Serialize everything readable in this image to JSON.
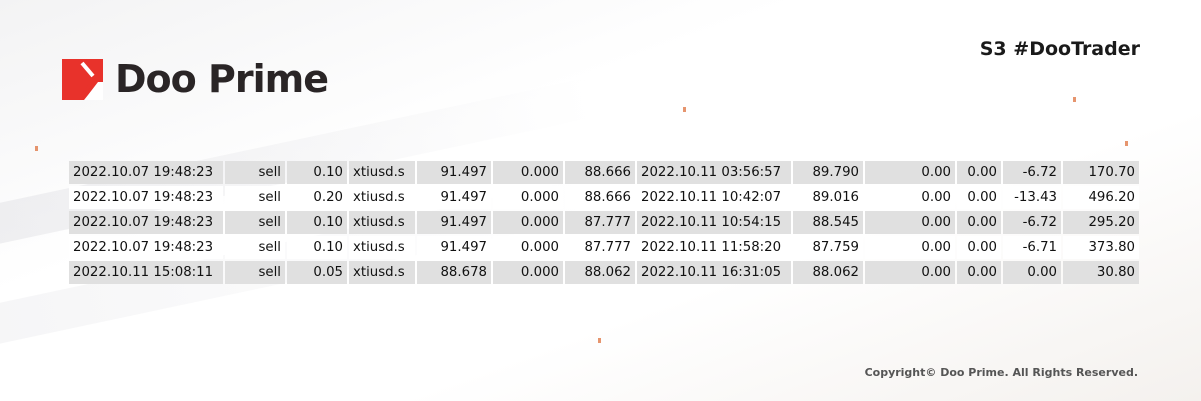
{
  "brand": {
    "logo_text": "Doo Prime",
    "accent": "#e8322b"
  },
  "tagline": "S3 #DooTrader",
  "copyright": "Copyright© Doo Prime. All Rights Reserved.",
  "trades": [
    [
      "2022.10.07 19:48:23",
      "sell",
      "0.10",
      "xtiusd.s",
      "91.497",
      "0.000",
      "88.666",
      "2022.10.11 03:56:57",
      "89.790",
      "0.00",
      "0.00",
      "-6.72",
      "170.70"
    ],
    [
      "2022.10.07 19:48:23",
      "sell",
      "0.20",
      "xtiusd.s",
      "91.497",
      "0.000",
      "88.666",
      "2022.10.11 10:42:07",
      "89.016",
      "0.00",
      "0.00",
      "-13.43",
      "496.20"
    ],
    [
      "2022.10.07 19:48:23",
      "sell",
      "0.10",
      "xtiusd.s",
      "91.497",
      "0.000",
      "87.777",
      "2022.10.11 10:54:15",
      "88.545",
      "0.00",
      "0.00",
      "-6.72",
      "295.20"
    ],
    [
      "2022.10.07 19:48:23",
      "sell",
      "0.10",
      "xtiusd.s",
      "91.497",
      "0.000",
      "87.777",
      "2022.10.11 11:58:20",
      "87.759",
      "0.00",
      "0.00",
      "-6.71",
      "373.80"
    ],
    [
      "2022.10.11 15:08:11",
      "sell",
      "0.05",
      "xtiusd.s",
      "88.678",
      "0.000",
      "88.062",
      "2022.10.11 16:31:05",
      "88.062",
      "0.00",
      "0.00",
      "0.00",
      "30.80"
    ]
  ]
}
